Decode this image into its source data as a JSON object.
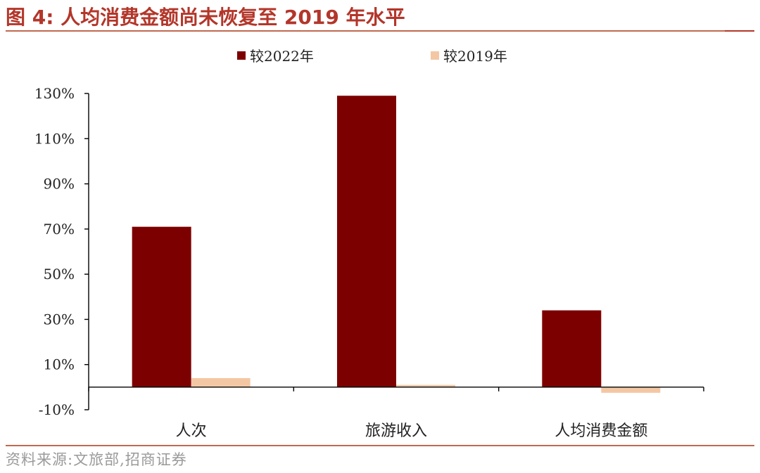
{
  "figure": {
    "title": "图 4:  人均消费金额尚未恢复至 2019 年水平",
    "source": "资料来源:文旅部,招商证券"
  },
  "colors": {
    "title": "#b3362a",
    "series_2022": "#7d0000",
    "series_2019": "#f4c7a4",
    "rule": "#c0694f",
    "source_text": "#9a9a9a"
  },
  "chart_data": {
    "type": "bar",
    "categories": [
      "人次",
      "旅游收入",
      "人均消费金额"
    ],
    "series": [
      {
        "name": "较2022年",
        "values": [
          71,
          129,
          34
        ]
      },
      {
        "name": "较2019年",
        "values": [
          4,
          1,
          -2.5
        ]
      }
    ],
    "yticks": [
      "-10%",
      "10%",
      "30%",
      "50%",
      "70%",
      "90%",
      "110%",
      "130%"
    ],
    "ylim": [
      -10,
      130
    ],
    "legend_position": "top-center",
    "grid": false
  }
}
